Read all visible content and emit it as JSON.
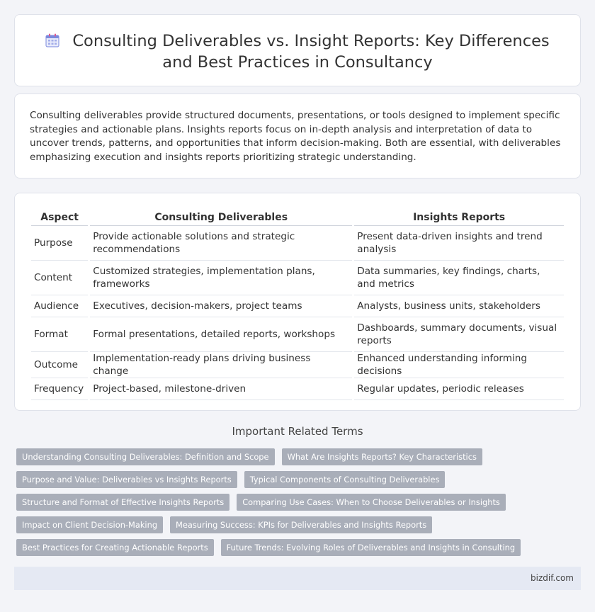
{
  "header": {
    "icon": "calendar-icon",
    "title": "Consulting Deliverables vs. Insight Reports: Key Differences and Best Practices in Consultancy"
  },
  "intro": {
    "text": "Consulting deliverables provide structured documents, presentations, or tools designed to implement specific strategies and actionable plans. Insights reports focus on in-depth analysis and interpretation of data to uncover trends, patterns, and opportunities that inform decision-making. Both are essential, with deliverables emphasizing execution and insights reports prioritizing strategic understanding."
  },
  "comparison": {
    "headers": [
      "Aspect",
      "Consulting Deliverables",
      "Insights Reports"
    ],
    "rows": [
      [
        "Purpose",
        "Provide actionable solutions and strategic recommendations",
        "Present data-driven insights and trend analysis"
      ],
      [
        "Content",
        "Customized strategies, implementation plans, frameworks",
        "Data summaries, key findings, charts, and metrics"
      ],
      [
        "Audience",
        "Executives, decision-makers, project teams",
        "Analysts, business units, stakeholders"
      ],
      [
        "Format",
        "Formal presentations, detailed reports, workshops",
        "Dashboards, summary documents, visual reports"
      ],
      [
        "Outcome",
        "Implementation-ready plans driving business change",
        "Enhanced understanding informing decisions"
      ],
      [
        "Frequency",
        "Project-based, milestone-driven",
        "Regular updates, periodic releases"
      ]
    ]
  },
  "related": {
    "title": "Important Related Terms",
    "tags": [
      "Understanding Consulting Deliverables: Definition and Scope",
      "What Are Insights Reports? Key Characteristics",
      "Purpose and Value: Deliverables vs Insights Reports",
      "Typical Components of Consulting Deliverables",
      "Structure and Format of Effective Insights Reports",
      "Comparing Use Cases: When to Choose Deliverables or Insights",
      "Impact on Client Decision-Making",
      "Measuring Success: KPIs for Deliverables and Insights Reports",
      "Best Practices for Creating Actionable Reports",
      "Future Trends: Evolving Roles of Deliverables and Insights in Consulting"
    ]
  },
  "footer": {
    "site": "bizdif.com"
  },
  "colors": {
    "background": "#f3f4f8",
    "tag_background": "#a9aeb9",
    "footer_background": "#e5e9f3",
    "icon_accent": "#6f7fd6"
  }
}
